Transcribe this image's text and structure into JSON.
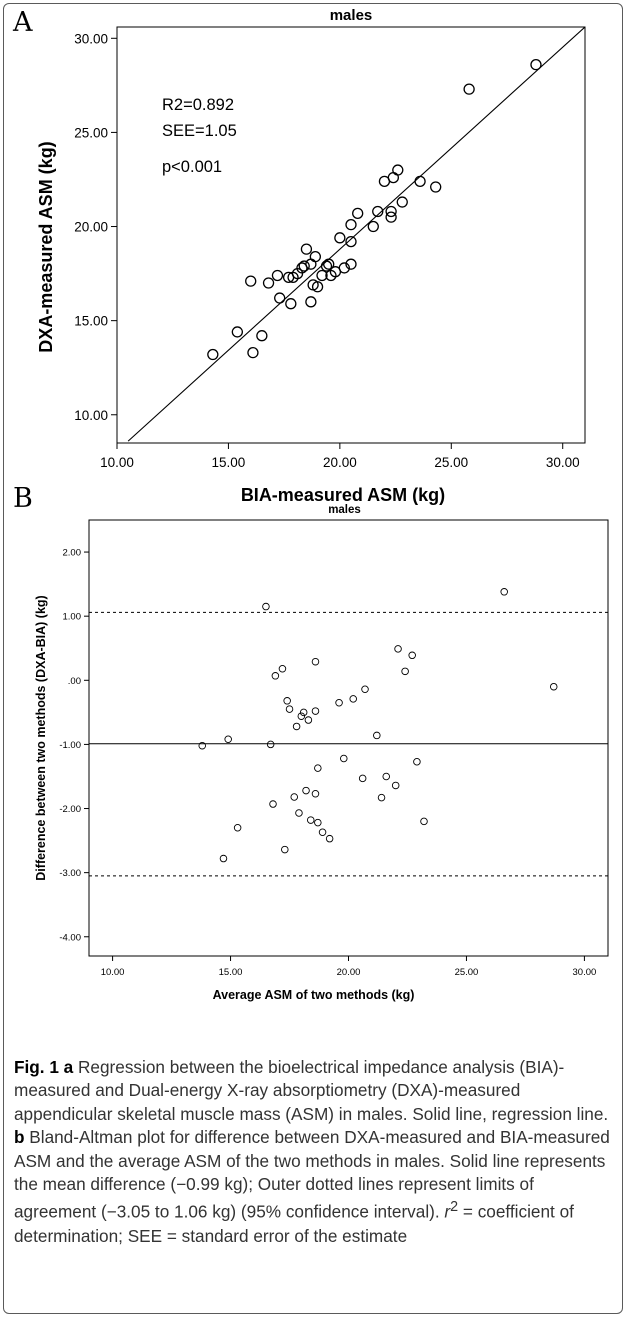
{
  "figure": {
    "panel_a_letter": "A",
    "panel_b_letter": "B",
    "caption": {
      "fig_label": "Fig. 1",
      "part_a_label": "a",
      "part_a_text": "Regression between the bioelectrical impedance analysis (BIA)-measured and Dual-energy X-ray absorptiometry (DXA)-measured appendicular skeletal muscle mass (ASM) in males. Solid line, regression line.",
      "part_b_label": "b",
      "part_b_text": "Bland-Altman plot for difference between DXA-measured and BIA-measured ASM and the average ASM of the two methods in males. Solid line represents the mean difference (−0.99 kg); Outer dotted lines represent limits of agreement (−3.05 to 1.06 kg) (95% confidence interval).",
      "r2_symbol": "r",
      "r2_exp": "2",
      "tail_text": " = coefficient of determination; SEE = standard error of the estimate"
    }
  },
  "chart_data": [
    {
      "type": "scatter",
      "title": "males",
      "xlabel": "BIA-measured ASM (kg)",
      "ylabel": "DXA-measured ASM (kg)",
      "xlim": [
        10,
        31
      ],
      "ylim": [
        8.5,
        30.6
      ],
      "x_ticks": [
        "10.00",
        "15.00",
        "20.00",
        "25.00",
        "30.00"
      ],
      "x_tick_values": [
        10,
        15,
        20,
        25,
        30
      ],
      "y_ticks": [
        "10.00",
        "15.00",
        "20.00",
        "25.00",
        "30.00"
      ],
      "y_tick_values": [
        10,
        15,
        20,
        25,
        30
      ],
      "annotations": [
        "R2=0.892",
        "SEE=1.05",
        "p<0.001"
      ],
      "regression_line": {
        "x": [
          10.5,
          31
        ],
        "y": [
          8.6,
          30.6
        ]
      },
      "points": [
        [
          14.3,
          13.2
        ],
        [
          15.4,
          14.4
        ],
        [
          16.1,
          13.3
        ],
        [
          16.5,
          14.2
        ],
        [
          16.0,
          17.1
        ],
        [
          16.8,
          17.0
        ],
        [
          17.3,
          16.2
        ],
        [
          17.2,
          17.4
        ],
        [
          17.7,
          17.3
        ],
        [
          17.9,
          17.3
        ],
        [
          17.8,
          15.9
        ],
        [
          18.1,
          17.5
        ],
        [
          18.3,
          17.8
        ],
        [
          18.4,
          17.9
        ],
        [
          18.5,
          18.8
        ],
        [
          18.7,
          18.0
        ],
        [
          18.8,
          16.9
        ],
        [
          18.7,
          16.0
        ],
        [
          19.0,
          16.8
        ],
        [
          18.9,
          18.4
        ],
        [
          19.2,
          17.4
        ],
        [
          19.4,
          17.9
        ],
        [
          19.5,
          18.0
        ],
        [
          19.6,
          17.4
        ],
        [
          19.8,
          17.6
        ],
        [
          20.0,
          19.4
        ],
        [
          20.2,
          17.8
        ],
        [
          20.5,
          20.1
        ],
        [
          20.5,
          19.2
        ],
        [
          20.5,
          18.0
        ],
        [
          20.8,
          20.7
        ],
        [
          21.5,
          20.0
        ],
        [
          21.7,
          20.8
        ],
        [
          22.0,
          22.4
        ],
        [
          22.3,
          20.5
        ],
        [
          22.3,
          20.8
        ],
        [
          22.4,
          22.6
        ],
        [
          22.6,
          23.0
        ],
        [
          22.8,
          21.3
        ],
        [
          23.6,
          22.4
        ],
        [
          24.3,
          22.1
        ],
        [
          25.8,
          27.3
        ],
        [
          28.8,
          28.6
        ]
      ]
    },
    {
      "type": "scatter",
      "title": "males",
      "xlabel": "Average ASM of two methods (kg)",
      "ylabel": "Difference between two methods (DXA-BIA) (kg)",
      "xlim": [
        9,
        31
      ],
      "ylim": [
        -4.3,
        2.5
      ],
      "x_ticks": [
        "10.00",
        "15.00",
        "20.00",
        "25.00",
        "30.00"
      ],
      "x_tick_values": [
        10,
        15,
        20,
        25,
        30
      ],
      "y_ticks": [
        "2.00",
        "1.00",
        ".00",
        "-1.00",
        "-2.00",
        "-3.00",
        "-4.00"
      ],
      "y_tick_values": [
        2,
        1,
        0,
        -1,
        -2,
        -3,
        -4
      ],
      "mean_difference": -0.99,
      "limits_of_agreement": [
        -3.05,
        1.06
      ],
      "points": [
        [
          13.8,
          -1.02
        ],
        [
          14.7,
          -2.78
        ],
        [
          14.9,
          -0.92
        ],
        [
          15.3,
          -2.3
        ],
        [
          16.5,
          1.15
        ],
        [
          16.7,
          -1.0
        ],
        [
          16.8,
          -1.93
        ],
        [
          16.9,
          0.07
        ],
        [
          17.2,
          0.18
        ],
        [
          17.3,
          -2.64
        ],
        [
          17.4,
          -0.32
        ],
        [
          17.5,
          -0.45
        ],
        [
          17.7,
          -1.82
        ],
        [
          17.8,
          -0.72
        ],
        [
          17.9,
          -2.07
        ],
        [
          18.0,
          -0.56
        ],
        [
          18.1,
          -0.5
        ],
        [
          18.2,
          -1.72
        ],
        [
          18.3,
          -0.62
        ],
        [
          18.4,
          -2.18
        ],
        [
          18.6,
          0.29
        ],
        [
          18.6,
          -1.77
        ],
        [
          18.6,
          -0.48
        ],
        [
          18.7,
          -1.37
        ],
        [
          18.7,
          -2.22
        ],
        [
          18.9,
          -2.37
        ],
        [
          19.2,
          -2.47
        ],
        [
          19.6,
          -0.35
        ],
        [
          19.8,
          -1.22
        ],
        [
          20.2,
          -0.29
        ],
        [
          20.6,
          -1.53
        ],
        [
          20.7,
          -0.14
        ],
        [
          21.2,
          -0.86
        ],
        [
          21.4,
          -1.83
        ],
        [
          21.6,
          -1.5
        ],
        [
          22.0,
          -1.64
        ],
        [
          22.1,
          0.49
        ],
        [
          22.4,
          0.14
        ],
        [
          22.7,
          0.39
        ],
        [
          22.9,
          -1.27
        ],
        [
          23.2,
          -2.2
        ],
        [
          26.6,
          1.38
        ],
        [
          28.7,
          -0.1
        ]
      ]
    }
  ]
}
